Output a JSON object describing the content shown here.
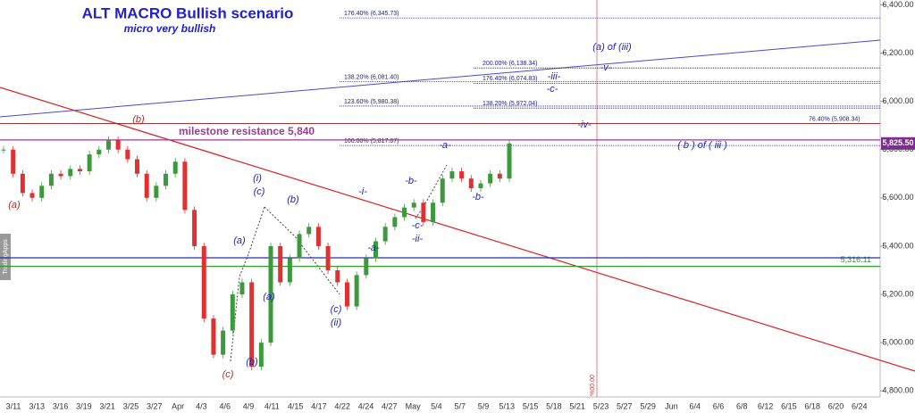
{
  "chart_data": {
    "type": "candlestick",
    "title": "ALT MACRO Bullish scenario",
    "subtitle": "micro very bullish",
    "watermark": "TradingApps",
    "series": [
      {
        "name": "Price",
        "up_color": "#3c9a3c",
        "down_color": "#e03030",
        "values": [
          5800,
          5700,
          5620,
          5600,
          5650,
          5700,
          5690,
          5720,
          5710,
          5780,
          5800,
          5840,
          5800,
          5760,
          5700,
          5600,
          5650,
          5700,
          5750,
          5550,
          5400,
          5100,
          4950,
          5050,
          5200,
          5250,
          4900,
          5000,
          5400,
          5250,
          5350,
          5450,
          5480,
          5400,
          5300,
          5250,
          5150,
          5280,
          5350,
          5420,
          5480,
          5520,
          5560,
          5580,
          5500,
          5580,
          5680,
          5710,
          5680,
          5640,
          5660,
          5700,
          5680,
          5825.5
        ]
      }
    ],
    "x_labels": [
      "3/11",
      "3/13",
      "3/16",
      "3/19",
      "3/21",
      "3/25",
      "3/27",
      "Apr",
      "4/3",
      "4/6",
      "4/9",
      "4/11",
      "4/15",
      "4/17",
      "4/22",
      "4/24",
      "4/27",
      "May",
      "5/4",
      "5/7",
      "5/9",
      "5/13",
      "5/15",
      "5/18",
      "5/21",
      "5/23",
      "5/27",
      "5/29",
      "Jun",
      "6/4",
      "6/6",
      "6/8",
      "6/12",
      "6/15",
      "6/18",
      "6/20",
      "6/24"
    ],
    "ylim": [
      4775,
      6420
    ],
    "yticks": [
      {
        "value": 4800,
        "label": "4,800.00"
      },
      {
        "value": 5000,
        "label": "5,000.00"
      },
      {
        "value": 5200,
        "label": "5,200.00"
      },
      {
        "value": 5400,
        "label": "5,400.00"
      },
      {
        "value": 5600,
        "label": "5,600.00"
      },
      {
        "value": 5800,
        "label": "5,800.00"
      },
      {
        "value": 6000,
        "label": "6,000.00"
      },
      {
        "value": 6200,
        "label": "6,200.00"
      },
      {
        "value": 6400,
        "label": "6,400.00"
      }
    ],
    "last_price": {
      "value": 5825.5,
      "label": "5,825.50",
      "color": "#7b2d8e"
    },
    "levels": [
      {
        "label": "176.40% (6,345.73)",
        "value": 6345.73,
        "color": "#2a2ab0"
      },
      {
        "label": "200.00% (6,138.34)",
        "value": 6138.34,
        "color": "#222222"
      },
      {
        "label": "138.20% (6,081.40)",
        "value": 6081.4,
        "color": "#2a2ab0"
      },
      {
        "label": "176.40% (6,074.83)",
        "value": 6074.83,
        "color": "#222222"
      },
      {
        "label": "123.60% (5,980.38)",
        "value": 5980.38,
        "color": "#2a2ab0"
      },
      {
        "label": "138.20% (5,972.04)",
        "value": 5972.04,
        "color": "#222222"
      },
      {
        "label": "76.40% (5,908.34)",
        "value": 5908.34,
        "color": "#8b1a1a"
      },
      {
        "label": "100.00% (5,817.07)",
        "value": 5817.07,
        "color": "#2a2ab0"
      }
    ],
    "lines": [
      {
        "label": "milestone resistance 5,840",
        "value": 5840,
        "color": "#9b3a9b"
      },
      {
        "label": "5,316.11",
        "value": 5316.11,
        "color": "#2e9e2e"
      }
    ],
    "vline_label": "%00.00",
    "annotations": [
      {
        "text": "(a)",
        "color": "#d02020"
      },
      {
        "text": "(b)",
        "color": "#d02020"
      },
      {
        "text": "(c)",
        "color": "#d02020"
      },
      {
        "text": "(i)",
        "color": "#2020c0"
      },
      {
        "text": "(c)",
        "color": "#2020c0"
      },
      {
        "text": "(a)",
        "color": "#2020c0"
      },
      {
        "text": "(b)",
        "color": "#2020c0"
      },
      {
        "text": "(a)",
        "color": "#2020c0"
      },
      {
        "text": "(b)",
        "color": "#2020c0"
      },
      {
        "text": "(c)",
        "color": "#2020c0"
      },
      {
        "text": "(ii)",
        "color": "#2020c0"
      },
      {
        "text": "-i-",
        "color": "#2020c0"
      },
      {
        "text": "-a-",
        "color": "#2020c0"
      },
      {
        "text": "-b-",
        "color": "#2020c0"
      },
      {
        "text": "-c-",
        "color": "#2020c0"
      },
      {
        "text": "-ii-",
        "color": "#2020c0"
      },
      {
        "text": "-a-",
        "color": "#2020c0"
      },
      {
        "text": "-b-",
        "color": "#2020c0"
      },
      {
        "text": "-iii-",
        "color": "#2020c0"
      },
      {
        "text": "-c-",
        "color": "#2020c0"
      },
      {
        "text": "-v-",
        "color": "#2020c0"
      },
      {
        "text": "-iv-",
        "color": "#2020c0"
      },
      {
        "text": "(a) of (iii)",
        "color": "#2020c0"
      },
      {
        "text": "( b ) of ( iii )",
        "color": "#2020c0"
      }
    ]
  }
}
